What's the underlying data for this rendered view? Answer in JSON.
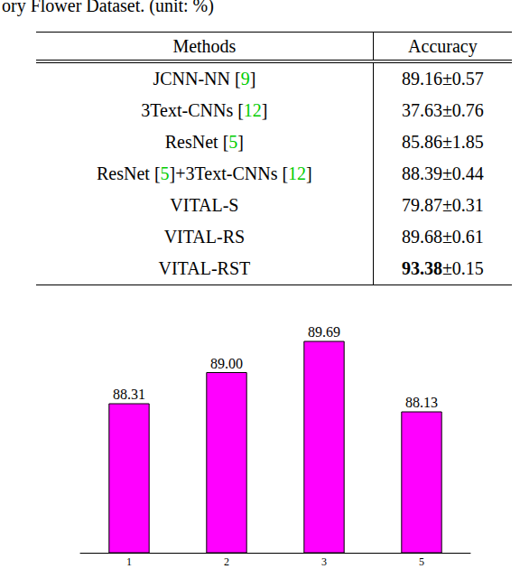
{
  "caption": "ory Flower Dataset. (unit: %)",
  "table": {
    "header": [
      "Methods",
      "Accuracy"
    ],
    "rows": [
      {
        "method": "JCNN-NN [9]",
        "accuracy": "89.16±0.57",
        "best": false
      },
      {
        "method": "3Text-CNNs [12]",
        "accuracy": "37.63±0.76",
        "best": false
      },
      {
        "method": "ResNet [5]",
        "accuracy": "85.86±1.85",
        "best": false
      },
      {
        "method": "ResNet [5]+3Text-CNNs [12]",
        "accuracy": "88.39±0.44",
        "best": false
      },
      {
        "method": "VITAL-S",
        "accuracy": "79.87±0.31",
        "best": false
      },
      {
        "method": "VITAL-RS",
        "accuracy": "89.68±0.61",
        "best": false
      },
      {
        "method": "VITAL-RST",
        "accuracy": "93.38±0.15",
        "best": true
      }
    ]
  },
  "chart_data": {
    "type": "bar",
    "categories": [
      "1",
      "2",
      "3",
      "5"
    ],
    "values": [
      88.31,
      89.0,
      89.69,
      88.13
    ],
    "value_labels": [
      "88.31",
      "89.00",
      "89.69",
      "88.13"
    ],
    "color": "#ff00ff",
    "ylim": [
      85,
      90
    ],
    "grid": false,
    "data_labels": true,
    "tick_labels": "x"
  }
}
